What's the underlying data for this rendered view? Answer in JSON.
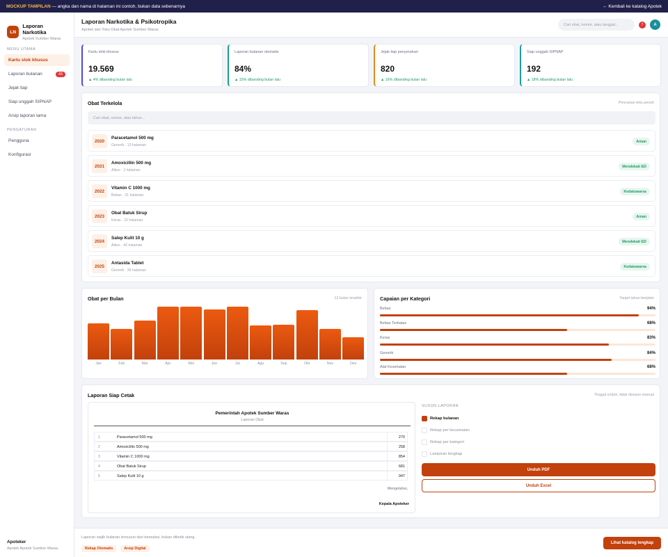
{
  "banner": {
    "tag": "MOCKUP TAMPILAN",
    "text": " — angka dan nama di halaman ini contoh, bukan data sebenarnya",
    "back": "← Kembali ke katalog Apotek"
  },
  "brand": {
    "logo": "LN",
    "title": "Laporan Narkotika",
    "subtitle": "Apotek Sumber Waras"
  },
  "sidebar": {
    "menu_label": "MENU UTAMA",
    "items": [
      {
        "label": "Kartu stok khusus",
        "active": true
      },
      {
        "label": "Laporan bulanan",
        "badge": "43"
      },
      {
        "label": "Jejak tiap"
      },
      {
        "label": "Siap unggah SIPNAP"
      },
      {
        "label": "Arsip laporan lama"
      }
    ],
    "settings_label": "PENGATURAN",
    "settings": [
      {
        "label": "Pengguna"
      },
      {
        "label": "Konfigurasi"
      }
    ],
    "footer": {
      "role": "Apoteker",
      "org": "Apotek Apotek Sumber Waras"
    }
  },
  "header": {
    "title": "Laporan Narkotika & Psikotropika",
    "subtitle": "Apotek dan Toko Obat Apotek Sumber Waras",
    "search_placeholder": "Cari obat, nomor, atau tanggal...",
    "notif_count": "7",
    "avatar": "A"
  },
  "kpis": [
    {
      "label": "Kartu stok khusus",
      "value": "19.569",
      "delta": "▲ 4% dibanding bulan lalu",
      "accent": "#4f46e5"
    },
    {
      "label": "Laporan bulanan otomatis",
      "value": "84%",
      "delta": "▲ 15% dibanding bulan lalu",
      "accent": "#14a085"
    },
    {
      "label": "Jejak tiap penyerahan",
      "value": "820",
      "delta": "▲ 16% dibanding bulan lalu",
      "accent": "#e08a1e"
    },
    {
      "label": "Siap unggah SIPNAP",
      "value": "192",
      "delta": "▲ 18% dibanding bulan lalu",
      "accent": "#14a0a8"
    }
  ],
  "drugs": {
    "title": "Obat Terkelola",
    "hint": "Pencarian teks penuh",
    "filter_placeholder": "Cari obat, nomor, atau tahun...",
    "rows": [
      {
        "year": "2020",
        "name": "Paracetamol 500 mg",
        "meta": "Generik · 13 halaman",
        "status": "Aman"
      },
      {
        "year": "2021",
        "name": "Amoxicillin 500 mg",
        "meta": "Alkes · 2 halaman",
        "status": "Mendekati ED"
      },
      {
        "year": "2022",
        "name": "Vitamin C 1000 mg",
        "meta": "Bebas · 31 halaman",
        "status": "Kedaluwarsa"
      },
      {
        "year": "2023",
        "name": "Obat Batuk Sirup",
        "meta": "Keras · 22 halaman",
        "status": "Aman"
      },
      {
        "year": "2024",
        "name": "Salep Kulit 10 g",
        "meta": "Alkes · 42 halaman",
        "status": "Mendekati ED"
      },
      {
        "year": "2025",
        "name": "Antasida Tablet",
        "meta": "Generik · 36 halaman",
        "status": "Kedaluwarsa"
      }
    ]
  },
  "monthly": {
    "title": "Obat per Bulan",
    "hint": "12 bulan terakhir",
    "chart_data": {
      "type": "bar",
      "categories": [
        "Jan",
        "Feb",
        "Mar",
        "Apr",
        "Mei",
        "Jun",
        "Jul",
        "Agu",
        "Sep",
        "Okt",
        "Nov",
        "Des"
      ],
      "values": [
        69,
        58,
        74,
        100,
        100,
        95,
        100,
        65,
        66,
        94,
        58,
        42
      ],
      "ylim": [
        0,
        100
      ]
    }
  },
  "categories": {
    "title": "Capaian per Kategori",
    "hint": "Target tahun berjalan",
    "items": [
      {
        "name": "Bebas",
        "pct": 94,
        "label": "94%"
      },
      {
        "name": "Bebas Terbatas",
        "pct": 68,
        "label": "68%"
      },
      {
        "name": "Keras",
        "pct": 83,
        "label": "83%"
      },
      {
        "name": "Generik",
        "pct": 84,
        "label": "84%"
      },
      {
        "name": "Alat Kesehatan",
        "pct": 68,
        "label": "68%"
      }
    ]
  },
  "report": {
    "title": "Laporan Siap Cetak",
    "hint": "Tinggal unduh, tidak disusun manual",
    "paper_title": "Pemerintah Apotek Sumber Waras",
    "paper_sub": "Laporan Obat",
    "rows": [
      {
        "no": "1",
        "name": "Paracetamol 500 mg",
        "qty": "270"
      },
      {
        "no": "2",
        "name": "Amoxicillin 500 mg",
        "qty": "258"
      },
      {
        "no": "3",
        "name": "Vitamin C 1000 mg",
        "qty": "854"
      },
      {
        "no": "4",
        "name": "Obat Batuk Sirup",
        "qty": "681"
      },
      {
        "no": "5",
        "name": "Salep Kulit 10 g",
        "qty": "947"
      }
    ],
    "know": "Mengetahui,",
    "sign": "Kepala Apoteker",
    "compose_label": "SUSUN LAPORAN",
    "options": [
      {
        "label": "Rekap bulanan",
        "checked": true
      },
      {
        "label": "Rekap per kecamatan",
        "checked": false
      },
      {
        "label": "Rekap per kategori",
        "checked": false
      },
      {
        "label": "Lampiran lengkap",
        "checked": false
      }
    ],
    "pdf": "Unduh PDF",
    "excel": "Unduh Excel"
  },
  "footer": {
    "note": "Laporan wajib bulanan tersusun dari transaksi, bukan diketik ulang.",
    "tags": [
      "Rekap Otomatis",
      "Arsip Digital"
    ],
    "cta": "Lihat katalog lengkap"
  }
}
